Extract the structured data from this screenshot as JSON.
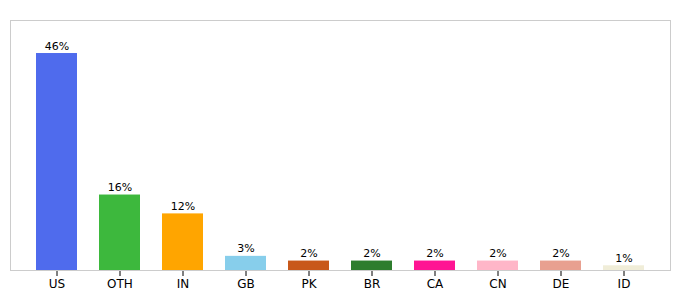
{
  "chart_data": {
    "type": "bar",
    "categories": [
      "US",
      "OTH",
      "IN",
      "GB",
      "PK",
      "BR",
      "CA",
      "CN",
      "DE",
      "ID"
    ],
    "values": [
      46,
      16,
      12,
      3,
      2,
      2,
      2,
      2,
      2,
      1
    ],
    "value_labels": [
      "46%",
      "16%",
      "12%",
      "3%",
      "2%",
      "2%",
      "2%",
      "2%",
      "2%",
      "1%"
    ],
    "colors": [
      "#4F6BED",
      "#3DB83D",
      "#FFA500",
      "#87CEEB",
      "#C8581A",
      "#2E7D2E",
      "#FF1493",
      "#FFB6C8",
      "#E8A090",
      "#F0EDD8"
    ],
    "ylim": [
      0,
      53
    ],
    "data_labels": true,
    "tick_labels": "x",
    "grid": false
  }
}
